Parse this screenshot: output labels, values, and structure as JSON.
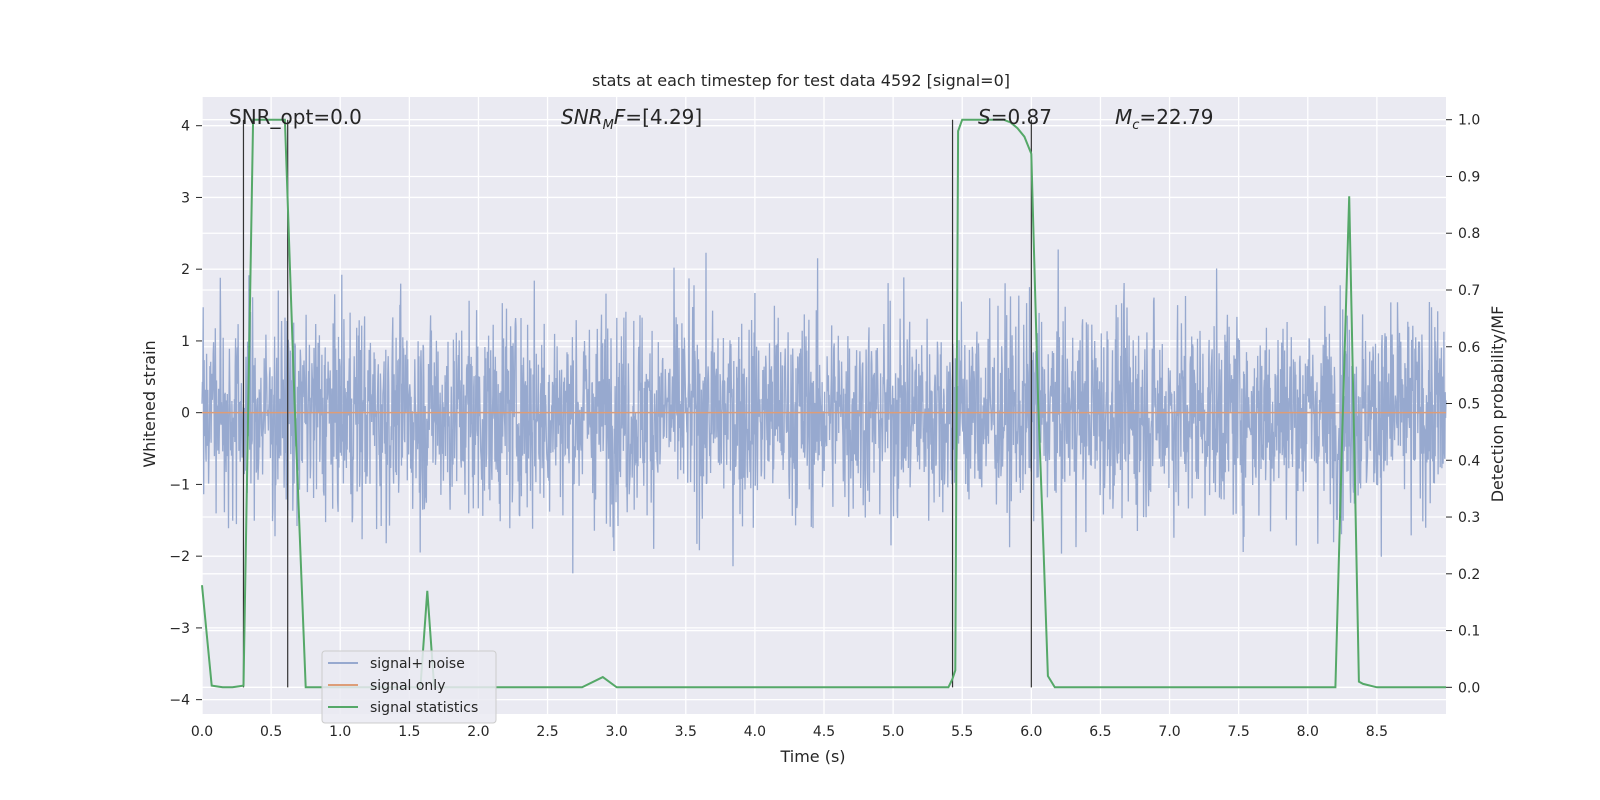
{
  "chart_data": {
    "type": "line",
    "title": "stats at each timestep for test data 4592 [signal=0]",
    "xlabel": "Time (s)",
    "ylabel": "Whitened strain",
    "y2label": "Detection probability/MF",
    "xlim": [
      0.0,
      9.0
    ],
    "ylim": [
      -4.2,
      4.4
    ],
    "y2lim": [
      -0.047,
      1.04
    ],
    "xticks": [
      "0.0",
      "0.5",
      "1.0",
      "1.5",
      "2.0",
      "2.5",
      "3.0",
      "3.5",
      "4.0",
      "4.5",
      "5.0",
      "5.5",
      "6.0",
      "6.5",
      "7.0",
      "7.5",
      "8.0",
      "8.5"
    ],
    "xtick_values": [
      0.0,
      0.5,
      1.0,
      1.5,
      2.0,
      2.5,
      3.0,
      3.5,
      4.0,
      4.5,
      5.0,
      5.5,
      6.0,
      6.5,
      7.0,
      7.5,
      8.0,
      8.5
    ],
    "yticks": [
      "−4",
      "−3",
      "−2",
      "−1",
      "0",
      "1",
      "2",
      "3",
      "4"
    ],
    "ytick_values": [
      -4,
      -3,
      -2,
      -1,
      0,
      1,
      2,
      3,
      4
    ],
    "y2ticks": [
      "0.0",
      "0.1",
      "0.2",
      "0.3",
      "0.4",
      "0.5",
      "0.6",
      "0.7",
      "0.8",
      "0.9",
      "1.0"
    ],
    "y2tick_values": [
      0.0,
      0.1,
      0.2,
      0.3,
      0.4,
      0.5,
      0.6,
      0.7,
      0.8,
      0.9,
      1.0
    ],
    "grid": true,
    "legend_placement": "lower-left",
    "annotations": {
      "snr_opt": "SNR_opt=0.0",
      "snr_mf": "[4.29]",
      "s_val": "0.87",
      "mc_val": "22.79"
    },
    "series": [
      {
        "name": "signal+ noise",
        "color": "#97a9cf",
        "description_kind": "noise_band",
        "envelope_upper_typical": 2.6,
        "envelope_lower_typical": -2.4,
        "max": 4.0,
        "min": -3.9
      },
      {
        "name": "signal only",
        "color": "#dd9d78",
        "values_const": 0.0
      },
      {
        "name": "signal statistics",
        "color": "#55a868",
        "axis": "right",
        "x": [
          0.0,
          0.07,
          0.15,
          0.22,
          0.3,
          0.37,
          0.45,
          0.52,
          0.6,
          0.67,
          0.75,
          1.0,
          1.3,
          1.5,
          1.58,
          1.63,
          1.68,
          1.75,
          2.0,
          2.5,
          2.75,
          2.9,
          3.0,
          3.5,
          4.0,
          4.5,
          5.0,
          5.3,
          5.4,
          5.43,
          5.45,
          5.47,
          5.5,
          5.6,
          5.7,
          5.8,
          5.85,
          5.9,
          5.95,
          6.0,
          6.05,
          6.08,
          6.12,
          6.17,
          6.2,
          6.5,
          7.0,
          7.5,
          8.0,
          8.15,
          8.2,
          8.25,
          8.3,
          8.33,
          8.37,
          8.4,
          8.5,
          9.0
        ],
        "values": [
          0.18,
          0.003,
          0.0,
          0.0,
          0.003,
          1.0,
          1.0,
          1.0,
          1.0,
          0.5,
          0.0,
          0.0,
          0.0,
          0.0,
          0.0,
          0.17,
          0.0,
          0.0,
          0.0,
          0.0,
          0.0,
          0.018,
          0.0,
          0.0,
          0.0,
          0.0,
          0.0,
          0.0,
          0.0,
          0.015,
          0.03,
          0.98,
          1.0,
          1.0,
          1.0,
          1.0,
          0.995,
          0.985,
          0.97,
          0.94,
          0.5,
          0.3,
          0.02,
          0.0,
          0.0,
          0.0,
          0.0,
          0.0,
          0.0,
          0.0,
          0.0,
          0.45,
          0.865,
          0.5,
          0.01,
          0.006,
          0.0,
          0.0
        ]
      }
    ],
    "vertical_markers": [
      0.3,
      0.62,
      5.43,
      6.0
    ]
  }
}
